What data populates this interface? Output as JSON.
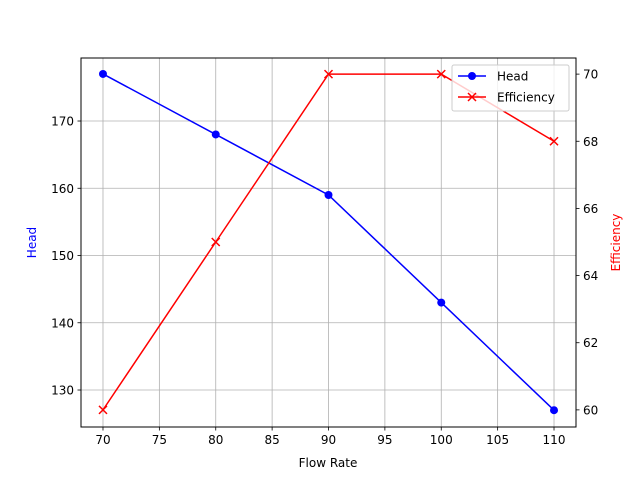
{
  "chart_data": {
    "type": "line",
    "title": "",
    "xlabel": "Flow Rate",
    "x": [
      70,
      80,
      90,
      100,
      110
    ],
    "xlim": [
      68.05,
      111.95
    ],
    "xticks": [
      70,
      75,
      80,
      85,
      90,
      95,
      100,
      105,
      110
    ],
    "grid": true,
    "legend_position": "upper right",
    "series": [
      {
        "name": "Head",
        "axis": "left",
        "color": "#0000ff",
        "marker": "o",
        "values": [
          177,
          168,
          159,
          143,
          127
        ]
      },
      {
        "name": "Efficiency",
        "axis": "right",
        "color": "#ff0000",
        "marker": "x",
        "values": [
          60,
          65,
          70,
          70,
          68
        ]
      }
    ],
    "y_left": {
      "label": "Head",
      "label_color": "#0000ff",
      "lim": [
        124.5,
        179.37
      ],
      "ticks": [
        130,
        140,
        150,
        160,
        170
      ]
    },
    "y_right": {
      "label": "Efficiency",
      "label_color": "#ff0000",
      "lim": [
        59.49,
        70.48
      ],
      "ticks": [
        60,
        62,
        64,
        66,
        68,
        70
      ]
    }
  },
  "legend": {
    "items": [
      {
        "label": "Head",
        "color": "#0000ff",
        "marker": "circle"
      },
      {
        "label": "Efficiency",
        "color": "#ff0000",
        "marker": "x"
      }
    ]
  }
}
